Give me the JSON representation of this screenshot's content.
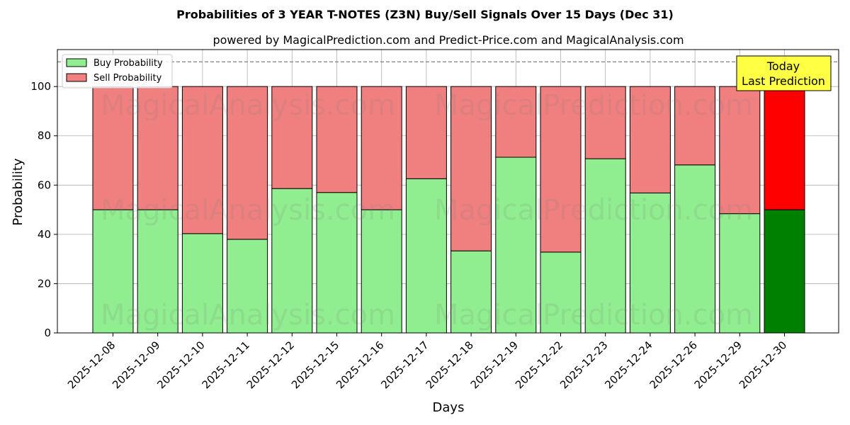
{
  "chart_data": {
    "type": "bar",
    "stacked": true,
    "title": "Probabilities of 3 YEAR T-NOTES (Z3N) Buy/Sell Signals Over 15 Days (Dec 31)",
    "subtitle": "powered by MagicalPrediction.com and Predict-Price.com and MagicalAnalysis.com",
    "xlabel": "Days",
    "ylabel": "Probability",
    "ylim": [
      0,
      115
    ],
    "yticks": [
      0,
      20,
      40,
      60,
      80,
      100
    ],
    "reference_line": 110,
    "grid": true,
    "legend_position": "top-left",
    "categories": [
      "2025-12-08",
      "2025-12-09",
      "2025-12-10",
      "2025-12-11",
      "2025-12-12",
      "2025-12-15",
      "2025-12-16",
      "2025-12-17",
      "2025-12-18",
      "2025-12-19",
      "2025-12-22",
      "2025-12-23",
      "2025-12-24",
      "2025-12-26",
      "2025-12-29",
      "2025-12-30"
    ],
    "series": [
      {
        "name": "Buy Probability",
        "color": "#90ee90",
        "highlight_color": "#008000",
        "values": [
          50,
          50,
          40.3,
          38,
          58.6,
          57,
          50,
          62.6,
          33.3,
          71.3,
          32.8,
          70.7,
          56.8,
          68.2,
          48.4,
          50
        ]
      },
      {
        "name": "Sell Probability",
        "color": "#f08080",
        "highlight_color": "#ff0000",
        "values": [
          50,
          50,
          59.7,
          62,
          41.4,
          43,
          50,
          37.4,
          66.7,
          28.7,
          67.2,
          29.3,
          43.2,
          31.8,
          51.6,
          50
        ]
      }
    ],
    "annotation": {
      "lines": [
        "Today",
        "Last Prediction"
      ],
      "bg_color": "#ffff44"
    },
    "watermarks": [
      "MagicalAnalysis.com",
      "MagicalPrediction.com"
    ]
  }
}
